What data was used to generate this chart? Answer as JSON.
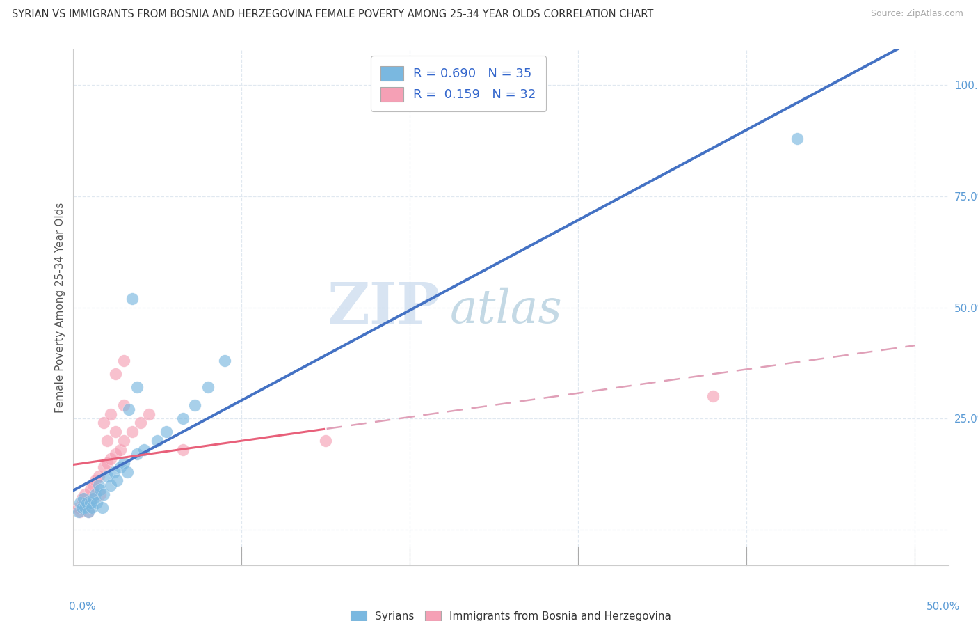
{
  "title": "SYRIAN VS IMMIGRANTS FROM BOSNIA AND HERZEGOVINA FEMALE POVERTY AMONG 25-34 YEAR OLDS CORRELATION CHART",
  "source": "Source: ZipAtlas.com",
  "ylabel": "Female Poverty Among 25-34 Year Olds",
  "xlim": [
    0.0,
    0.52
  ],
  "ylim": [
    -0.08,
    1.08
  ],
  "syrian_color": "#7ab8e0",
  "bosnia_color": "#f5a0b5",
  "syrian_line_color": "#4472c4",
  "bosnia_line_color": "#e8607a",
  "bosnia_dash_color": "#e0a0b8",
  "syrian_R": 0.69,
  "syrian_N": 35,
  "bosnia_R": 0.159,
  "bosnia_N": 32,
  "watermark_zip": "ZIP",
  "watermark_atlas": "atlas",
  "legend_label_1": "Syrians",
  "legend_label_2": "Immigrants from Bosnia and Herzegovina",
  "ytick_vals": [
    0.0,
    0.25,
    0.5,
    0.75,
    1.0
  ],
  "ytick_labels": [
    "",
    "25.0%",
    "50.0%",
    "75.0%",
    "100.0%"
  ],
  "syrian_x": [
    0.003,
    0.004,
    0.005,
    0.006,
    0.007,
    0.008,
    0.009,
    0.01,
    0.011,
    0.012,
    0.013,
    0.014,
    0.015,
    0.016,
    0.017,
    0.018,
    0.02,
    0.022,
    0.024,
    0.026,
    0.028,
    0.03,
    0.032,
    0.038,
    0.042,
    0.05,
    0.055,
    0.065,
    0.072,
    0.08,
    0.09,
    0.033,
    0.038,
    0.43,
    0.035
  ],
  "syrian_y": [
    0.04,
    0.06,
    0.05,
    0.07,
    0.05,
    0.06,
    0.04,
    0.06,
    0.05,
    0.07,
    0.08,
    0.06,
    0.1,
    0.09,
    0.05,
    0.08,
    0.12,
    0.1,
    0.13,
    0.11,
    0.14,
    0.15,
    0.13,
    0.17,
    0.18,
    0.2,
    0.22,
    0.25,
    0.28,
    0.32,
    0.38,
    0.27,
    0.32,
    0.88,
    0.52
  ],
  "bosnia_x": [
    0.003,
    0.004,
    0.005,
    0.006,
    0.007,
    0.008,
    0.009,
    0.01,
    0.011,
    0.012,
    0.013,
    0.015,
    0.016,
    0.018,
    0.02,
    0.022,
    0.025,
    0.028,
    0.03,
    0.035,
    0.04,
    0.045,
    0.025,
    0.03,
    0.065,
    0.02,
    0.025,
    0.018,
    0.022,
    0.03,
    0.15,
    0.38
  ],
  "bosnia_y": [
    0.05,
    0.04,
    0.07,
    0.05,
    0.08,
    0.06,
    0.04,
    0.09,
    0.07,
    0.1,
    0.11,
    0.12,
    0.08,
    0.14,
    0.15,
    0.16,
    0.17,
    0.18,
    0.2,
    0.22,
    0.24,
    0.26,
    0.35,
    0.38,
    0.18,
    0.2,
    0.22,
    0.24,
    0.26,
    0.28,
    0.2,
    0.3
  ],
  "background_color": "#ffffff",
  "grid_color": "#e0e8f0",
  "tick_color": "#5b9bd5",
  "legend_R_color": "#3366cc"
}
